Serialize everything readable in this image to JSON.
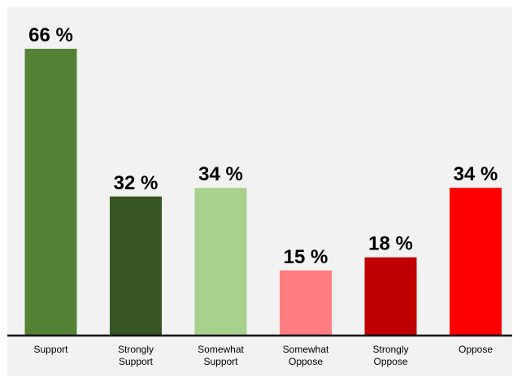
{
  "chart_data": {
    "type": "bar",
    "title": "",
    "xlabel": "",
    "ylabel": "",
    "ylim": [
      0,
      72
    ],
    "grid": false,
    "value_suffix": " %",
    "categories": [
      [
        "Support"
      ],
      [
        "Strongly",
        "Support"
      ],
      [
        "Somewhat",
        "Support"
      ],
      [
        "Somewhat",
        "Oppose"
      ],
      [
        "Strongly",
        "Oppose"
      ],
      [
        "Oppose"
      ]
    ],
    "values": [
      66,
      32,
      34,
      15,
      18,
      34
    ],
    "value_labels": [
      "66 %",
      "32 %",
      "34 %",
      "15 %",
      "18 %",
      "34 %"
    ],
    "colors": [
      "#548235",
      "#375623",
      "#a9d18e",
      "#ff7c80",
      "#c00000",
      "#ff0000"
    ],
    "background": "#f2f2f2"
  }
}
